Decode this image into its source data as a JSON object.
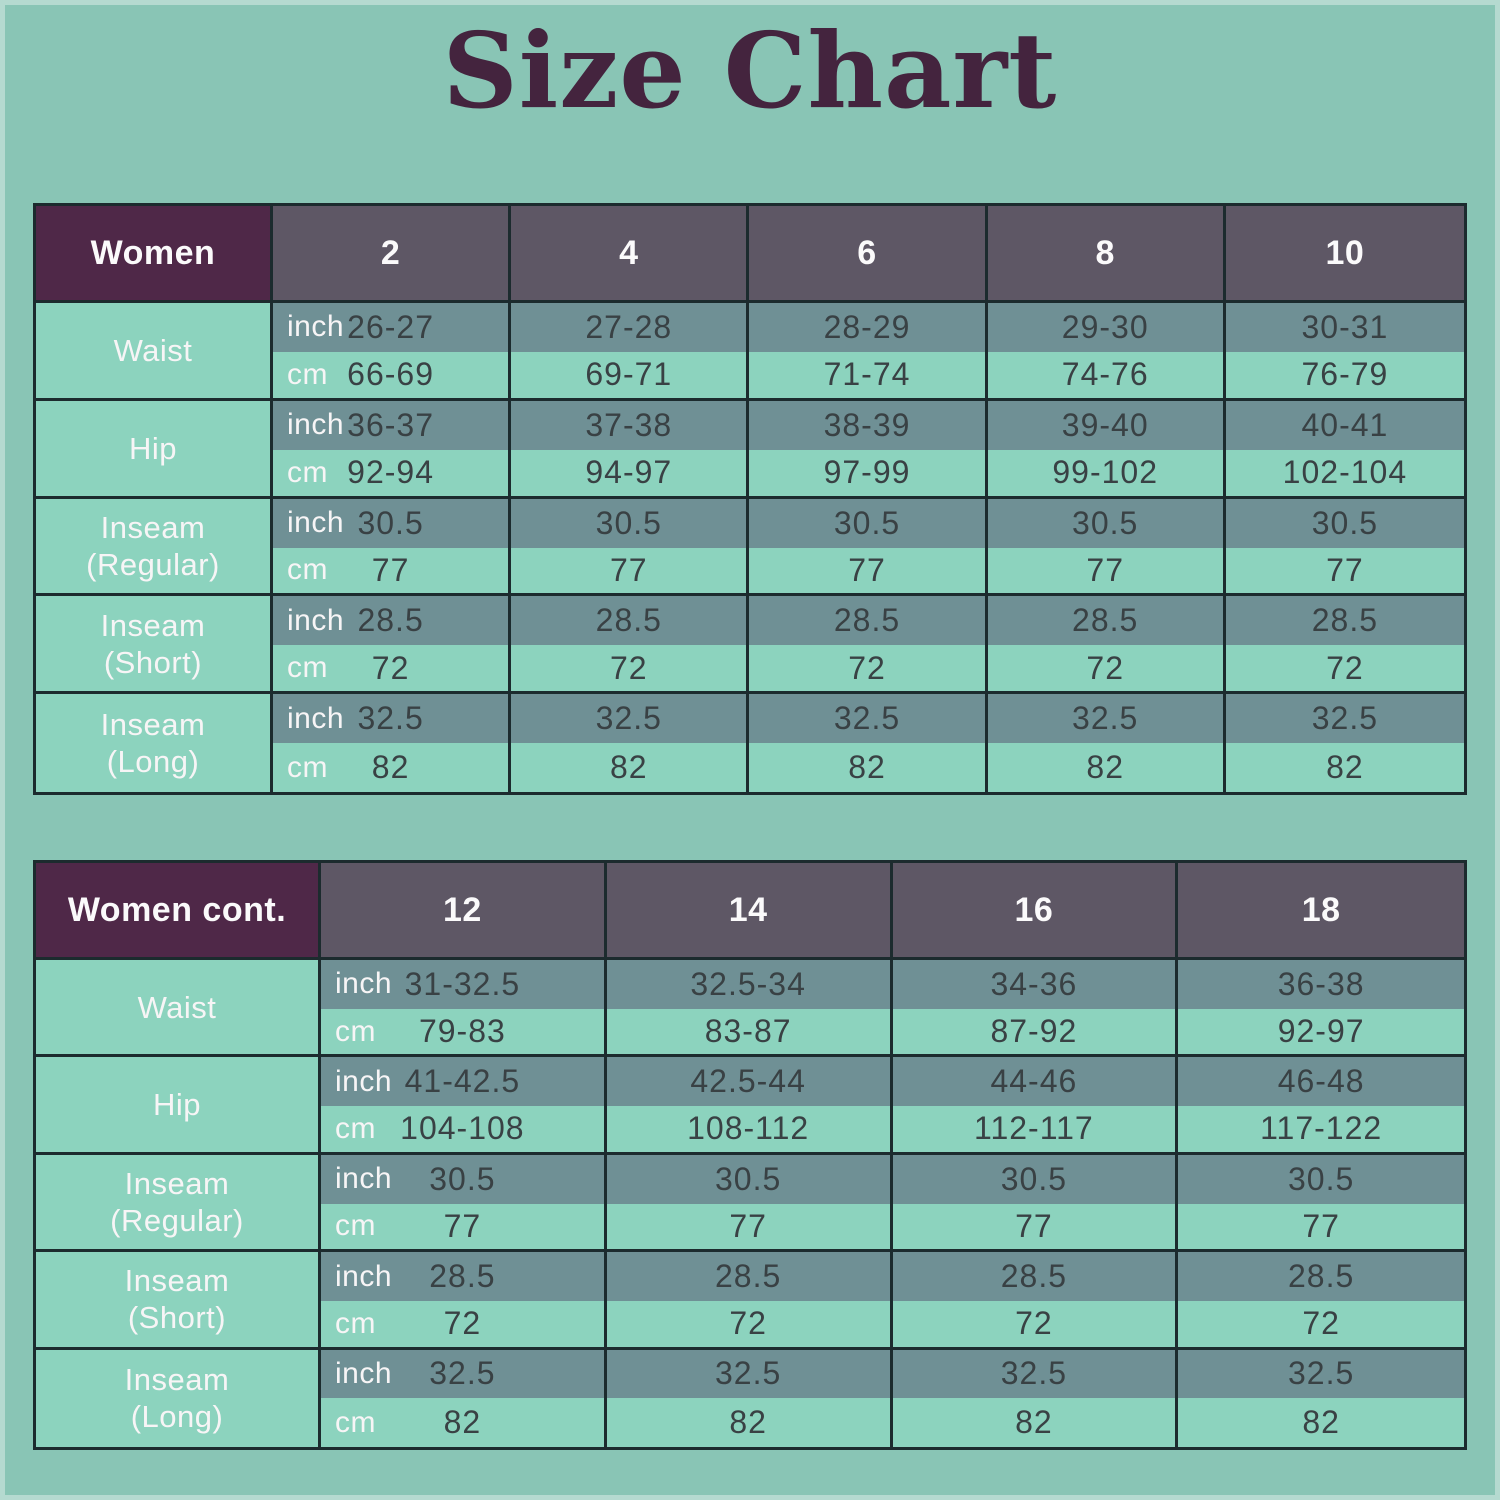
{
  "page": {
    "title": "Size Chart"
  },
  "colors": {
    "background": "#89C5B5",
    "header_plum": "#4F2848",
    "header_gray_purple": "#5E5765",
    "row_inch": "#6F9095",
    "row_cm": "#8CD3BE",
    "border": "#1C2B2E",
    "title_text": "#44243E",
    "value_text": "#394144",
    "light_text": "#F7F5F6"
  },
  "chart_data": [
    {
      "type": "table",
      "header_label": "Women",
      "sizes": [
        "2",
        "4",
        "6",
        "8",
        "10"
      ],
      "unit_labels": {
        "inch": "inch",
        "cm": "cm"
      },
      "rows": [
        {
          "label": "Waist",
          "inch": [
            "26-27",
            "27-28",
            "28-29",
            "29-30",
            "30-31"
          ],
          "cm": [
            "66-69",
            "69-71",
            "71-74",
            "74-76",
            "76-79"
          ]
        },
        {
          "label": "Hip",
          "inch": [
            "36-37",
            "37-38",
            "38-39",
            "39-40",
            "40-41"
          ],
          "cm": [
            "92-94",
            "94-97",
            "97-99",
            "99-102",
            "102-104"
          ]
        },
        {
          "label": "Inseam\n(Regular)",
          "inch": [
            "30.5",
            "30.5",
            "30.5",
            "30.5",
            "30.5"
          ],
          "cm": [
            "77",
            "77",
            "77",
            "77",
            "77"
          ]
        },
        {
          "label": "Inseam\n(Short)",
          "inch": [
            "28.5",
            "28.5",
            "28.5",
            "28.5",
            "28.5"
          ],
          "cm": [
            "72",
            "72",
            "72",
            "72",
            "72"
          ]
        },
        {
          "label": "Inseam\n(Long)",
          "inch": [
            "32.5",
            "32.5",
            "32.5",
            "32.5",
            "32.5"
          ],
          "cm": [
            "82",
            "82",
            "82",
            "82",
            "82"
          ]
        }
      ]
    },
    {
      "type": "table",
      "header_label": "Women cont.",
      "sizes": [
        "12",
        "14",
        "16",
        "18"
      ],
      "unit_labels": {
        "inch": "inch",
        "cm": "cm"
      },
      "rows": [
        {
          "label": "Waist",
          "inch": [
            "31-32.5",
            "32.5-34",
            "34-36",
            "36-38"
          ],
          "cm": [
            "79-83",
            "83-87",
            "87-92",
            "92-97"
          ]
        },
        {
          "label": "Hip",
          "inch": [
            "41-42.5",
            "42.5-44",
            "44-46",
            "46-48"
          ],
          "cm": [
            "104-108",
            "108-112",
            "112-117",
            "117-122"
          ]
        },
        {
          "label": "Inseam\n(Regular)",
          "inch": [
            "30.5",
            "30.5",
            "30.5",
            "30.5"
          ],
          "cm": [
            "77",
            "77",
            "77",
            "77"
          ]
        },
        {
          "label": "Inseam\n(Short)",
          "inch": [
            "28.5",
            "28.5",
            "28.5",
            "28.5"
          ],
          "cm": [
            "72",
            "72",
            "72",
            "72"
          ]
        },
        {
          "label": "Inseam\n(Long)",
          "inch": [
            "32.5",
            "32.5",
            "32.5",
            "32.5"
          ],
          "cm": [
            "82",
            "82",
            "82",
            "82"
          ]
        }
      ]
    }
  ]
}
